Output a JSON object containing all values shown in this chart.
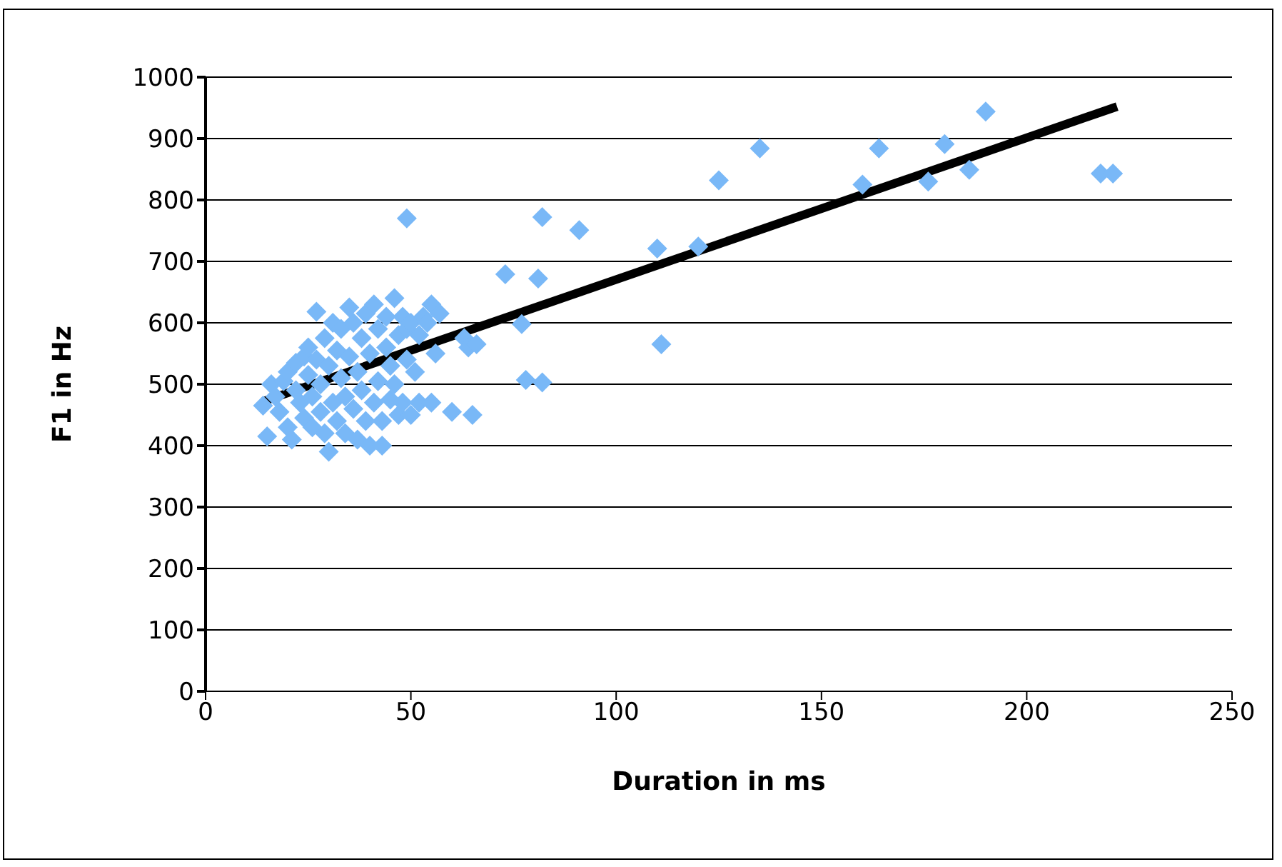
{
  "chart_data": {
    "type": "scatter",
    "xlabel": "Duration in ms",
    "ylabel": "F1 in Hz",
    "xlim": [
      0,
      250
    ],
    "xticks": [
      0,
      50,
      100,
      150,
      200,
      250
    ],
    "ylim": [
      0,
      1000
    ],
    "yticks": [
      0,
      100,
      200,
      300,
      400,
      500,
      600,
      700,
      800,
      900,
      1000
    ],
    "grid": "y",
    "legend": false,
    "series": [
      {
        "marker": "diamond",
        "color": "#79b8f7",
        "x": [
          14,
          15,
          16,
          17,
          18,
          19,
          20,
          20,
          21,
          22,
          22,
          23,
          24,
          24,
          25,
          25,
          26,
          26,
          27,
          27,
          28,
          28,
          29,
          29,
          30,
          30,
          31,
          31,
          32,
          32,
          33,
          33,
          34,
          34,
          35,
          35,
          36,
          36,
          37,
          37,
          38,
          38,
          39,
          39,
          40,
          40,
          41,
          41,
          42,
          42,
          43,
          43,
          44,
          44,
          45,
          45,
          46,
          46,
          47,
          47,
          48,
          48,
          49,
          49,
          50,
          50,
          51,
          52,
          52,
          53,
          54,
          55,
          55,
          56,
          57,
          60,
          63,
          64,
          65,
          66,
          49,
          73,
          77,
          78,
          81,
          82,
          82,
          91,
          110,
          111,
          120,
          125,
          135,
          160,
          164,
          176,
          180,
          186,
          190,
          218,
          221
        ],
        "values": [
          465,
          415,
          500,
          480,
          455,
          505,
          430,
          520,
          410,
          490,
          535,
          470,
          545,
          445,
          515,
          560,
          480,
          430,
          618,
          540,
          500,
          455,
          575,
          420,
          390,
          530,
          600,
          470,
          440,
          555,
          510,
          590,
          420,
          480,
          625,
          545,
          460,
          600,
          410,
          520,
          575,
          490,
          440,
          615,
          400,
          550,
          630,
          470,
          505,
          590,
          400,
          440,
          560,
          610,
          475,
          530,
          640,
          500,
          580,
          450,
          610,
          470,
          540,
          590,
          450,
          600,
          520,
          580,
          470,
          610,
          600,
          630,
          470,
          550,
          615,
          455,
          575,
          560,
          450,
          565,
          770,
          679,
          598,
          507,
          672,
          772,
          503,
          751,
          721,
          565,
          724,
          832,
          884,
          825,
          884,
          830,
          891,
          849,
          944,
          843,
          843
        ]
      },
      {
        "type": "line",
        "color": "#000000",
        "x": [
          14,
          222
        ],
        "values": [
          472,
          952
        ]
      }
    ]
  }
}
